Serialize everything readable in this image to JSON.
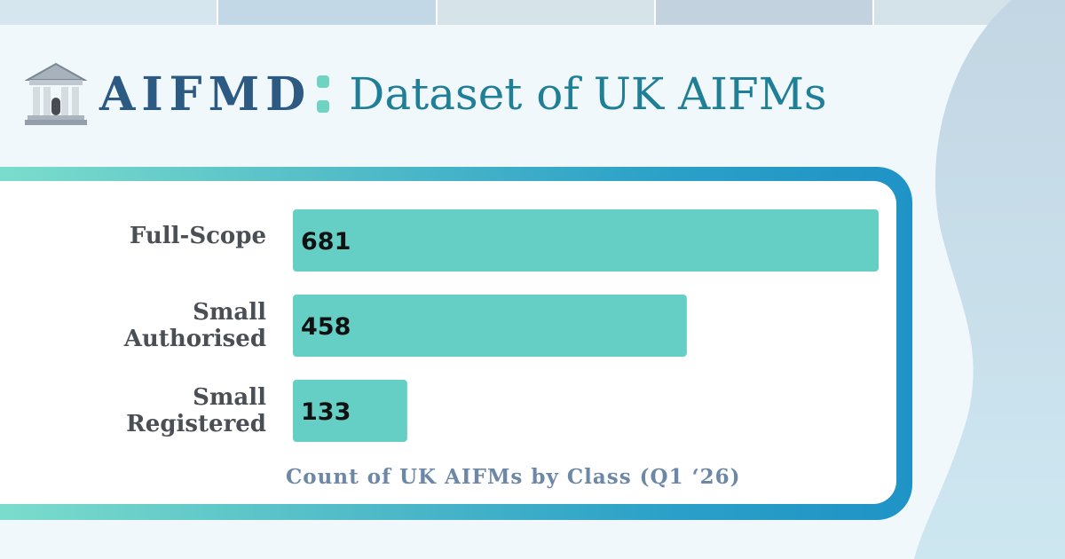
{
  "header": {
    "brand": "AIFMD",
    "subtitle": "Dataset of UK AIFMs",
    "icon": "bank-building-icon"
  },
  "colors": {
    "brand": "#2d5a82",
    "subtitle": "#1f7f96",
    "accent": "#6fd3c3",
    "bar": "#66cfc5",
    "label": "#4a4f55",
    "caption": "#6c88a6"
  },
  "chart_data": {
    "type": "bar",
    "orientation": "horizontal",
    "categories": [
      "Full-Scope",
      "Small Authorised",
      "Small Registered"
    ],
    "category_lines": [
      [
        "Full-Scope"
      ],
      [
        "Small",
        "Authorised"
      ],
      [
        "Small",
        "Registered"
      ]
    ],
    "values": [
      681,
      458,
      133
    ],
    "xlim": [
      0,
      681
    ],
    "caption": "Count of UK AIFMs by Class (Q1 ‘26)",
    "grid": false,
    "legend": "none"
  }
}
